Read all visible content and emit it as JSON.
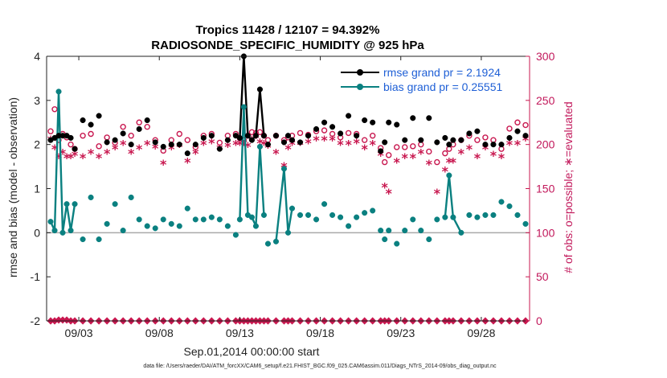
{
  "chart_data": {
    "type": "line",
    "title": "Tropics 11428 / 12107 = 94.392%",
    "subtitle": "RADIOSONDE_SPECIFIC_HUMIDITY @ 925 hPa",
    "xlabel": "Sep.01,2014 00:00:00 start",
    "ylabel_left": "rmse and bias (model - observation)",
    "ylabel_right": "# of obs: o=possible; ∗=evaluated",
    "footnote": "data file: /Users/raeder/DAI/ATM_forcXX/CAM6_setup/f.e21.FHIST_BGC.f09_025.CAM6assim.011/Diags_NTrS_2014-09/obs_diag_output.nc",
    "xlim": [
      1,
      31
    ],
    "ylim_left": [
      -2,
      4
    ],
    "ylim_right": [
      0,
      300
    ],
    "x_ticks": [
      3,
      8,
      13,
      18,
      23,
      28
    ],
    "x_tick_labels": [
      "09/03",
      "09/08",
      "09/13",
      "09/18",
      "09/23",
      "09/28"
    ],
    "y_ticks_left": [
      -2,
      -1,
      0,
      1,
      2,
      3,
      4
    ],
    "y_tick_labels_left": [
      "-2",
      "-1",
      "0",
      "1",
      "2",
      "3",
      "4"
    ],
    "y_ticks_right": [
      0,
      50,
      100,
      150,
      200,
      250,
      300
    ],
    "y_tick_labels_right": [
      "0",
      "50",
      "100",
      "150",
      "200",
      "250",
      "300"
    ],
    "legend": {
      "rmse": "rmse grand pr = 2.1924",
      "bias": "bias grand pr = 0.25551"
    },
    "colors": {
      "rmse": "#000000",
      "bias": "#0a8080",
      "obs": "#c8174f",
      "zero_line": "#aaaaaa",
      "legend_text": "#1e5fd6"
    },
    "series": [
      {
        "name": "rmse",
        "axis": "left",
        "x": [
          1.25,
          1.5,
          1.75,
          2,
          2.25,
          2.5,
          2.75,
          3.25,
          3.75,
          4.25,
          4.75,
          5.25,
          5.75,
          6.25,
          6.75,
          7.25,
          7.75,
          8.25,
          8.75,
          9.25,
          9.75,
          10.25,
          10.75,
          11.25,
          11.75,
          12.25,
          12.75,
          13,
          13.25,
          13.5,
          13.75,
          14,
          14.25,
          14.5,
          14.75,
          15.25,
          15.75,
          16,
          16.25,
          16.75,
          17.25,
          17.75,
          18.25,
          18.75,
          19.25,
          19.75,
          20.25,
          20.75,
          21.25,
          21.75,
          22,
          22.25,
          22.75,
          23.25,
          23.75,
          24.25,
          24.75,
          25.25,
          25.75,
          26,
          26.25,
          26.75,
          27.25,
          27.75,
          28.25,
          28.75,
          29.25,
          29.75,
          30.25,
          30.75
        ],
        "values": [
          2.1,
          2.15,
          2.2,
          2.2,
          2.2,
          2.15,
          1.9,
          2.55,
          2.45,
          2.65,
          2.05,
          2.1,
          2.25,
          2.0,
          2.35,
          2.55,
          2.05,
          1.95,
          2.0,
          2.0,
          1.8,
          2.0,
          2.15,
          2.2,
          1.9,
          2.1,
          2.2,
          2.15,
          4.0,
          2.2,
          2.1,
          2.2,
          3.25,
          2.2,
          2.0,
          2.2,
          2.05,
          2.2,
          2.1,
          2.05,
          2.2,
          2.35,
          2.5,
          2.4,
          2.25,
          2.65,
          2.2,
          2.55,
          2.5,
          1.85,
          2.05,
          2.5,
          2.45,
          2.1,
          2.6,
          2.1,
          2.6,
          2.05,
          2.15,
          2.0,
          2.1,
          2.1,
          2.25,
          2.3,
          2.0,
          2.0,
          2.0,
          2.15,
          2.3,
          2.2
        ],
        "polyline_segments": [
          [
            0,
            4
          ],
          [
            27,
            33
          ]
        ]
      },
      {
        "name": "bias",
        "axis": "left",
        "x": [
          1.25,
          1.5,
          1.75,
          2,
          2.25,
          2.5,
          2.75,
          3.25,
          3.75,
          4.25,
          4.75,
          5.25,
          5.75,
          6.25,
          6.75,
          7.25,
          7.75,
          8.25,
          8.75,
          9.25,
          9.75,
          10.25,
          10.75,
          11.25,
          11.75,
          12.25,
          12.75,
          13,
          13.25,
          13.5,
          13.75,
          14,
          14.25,
          14.5,
          14.75,
          15.25,
          15.75,
          16,
          16.25,
          16.75,
          17.25,
          17.75,
          18.25,
          18.75,
          19.25,
          19.75,
          20.25,
          20.75,
          21.25,
          21.75,
          22,
          22.25,
          22.75,
          23.25,
          23.75,
          24.25,
          24.75,
          25.25,
          25.75,
          26,
          26.25,
          26.75,
          27.25,
          27.75,
          28.25,
          28.75,
          29.25,
          29.75,
          30.25,
          30.75
        ],
        "values": [
          0.25,
          0.05,
          3.2,
          0.0,
          0.65,
          0.05,
          0.65,
          -0.15,
          0.8,
          -0.15,
          0.2,
          0.65,
          0.05,
          0.8,
          0.3,
          0.15,
          0.1,
          0.3,
          0.2,
          0.15,
          0.55,
          0.3,
          0.3,
          0.35,
          0.3,
          0.15,
          -0.05,
          0.3,
          2.85,
          0.4,
          0.35,
          0.15,
          1.95,
          0.4,
          -0.25,
          -0.2,
          1.45,
          0.0,
          0.55,
          0.4,
          0.4,
          0.3,
          0.65,
          0.4,
          0.35,
          0.15,
          0.35,
          0.45,
          0.5,
          0.05,
          -0.15,
          0.05,
          -0.25,
          0.05,
          0.3,
          0.05,
          -0.15,
          0.3,
          0.35,
          1.3,
          0.35,
          0.0,
          0.4,
          0.35,
          0.4,
          0.4,
          0.7,
          0.6,
          0.4,
          0.2
        ],
        "polyline_segments": [
          [
            0,
            6
          ],
          [
            27,
            33
          ],
          [
            35,
            38
          ],
          [
            58,
            61
          ]
        ]
      },
      {
        "name": "obs_possible",
        "axis": "right",
        "marker": "o",
        "x": [
          1.25,
          1.5,
          1.75,
          2,
          2.25,
          2.5,
          2.75,
          3.25,
          3.75,
          4.25,
          4.75,
          5.25,
          5.75,
          6.25,
          6.75,
          7.25,
          7.75,
          8.25,
          8.75,
          9.25,
          9.75,
          10.25,
          10.75,
          11.25,
          11.75,
          12.25,
          12.75,
          13,
          13.25,
          13.5,
          13.75,
          14,
          14.25,
          14.5,
          14.75,
          15.25,
          15.75,
          16,
          16.25,
          16.75,
          17.25,
          17.75,
          18.25,
          18.75,
          19.25,
          19.75,
          20.25,
          20.75,
          21.25,
          21.75,
          22,
          22.25,
          22.75,
          23.25,
          23.75,
          24.25,
          24.75,
          25.25,
          25.75,
          26,
          26.25,
          26.75,
          27.25,
          27.75,
          28.25,
          28.75,
          29.25,
          29.75,
          30.25,
          30.75
        ],
        "values": [
          215,
          240,
          205,
          212,
          208,
          200,
          195,
          210,
          212,
          198,
          208,
          202,
          220,
          210,
          225,
          220,
          205,
          193,
          205,
          212,
          205,
          197,
          210,
          212,
          202,
          210,
          212,
          207,
          205,
          210,
          214,
          213,
          214,
          210,
          205,
          210,
          205,
          208,
          210,
          213,
          211,
          215,
          216,
          212,
          208,
          213,
          212,
          205,
          210,
          196,
          180,
          188,
          197,
          197,
          198,
          200,
          192,
          180,
          190,
          195,
          200,
          205,
          210,
          205,
          208,
          205,
          195,
          218,
          225,
          222
        ]
      },
      {
        "name": "obs_evaluated",
        "axis": "right",
        "marker": "*",
        "x": [
          1.25,
          1.5,
          1.75,
          2,
          2.25,
          2.5,
          2.75,
          3.25,
          3.75,
          4.25,
          4.75,
          5.25,
          5.75,
          6.25,
          6.75,
          7.25,
          7.75,
          8.25,
          8.75,
          9.25,
          9.75,
          10.25,
          10.75,
          11.25,
          11.75,
          12.25,
          12.75,
          13,
          13.25,
          13.5,
          13.75,
          14,
          14.25,
          14.5,
          14.75,
          15.25,
          15.75,
          16,
          16.25,
          16.75,
          17.25,
          17.75,
          18.25,
          18.75,
          19.25,
          19.75,
          20.25,
          20.75,
          21.25,
          21.75,
          22,
          22.25,
          22.75,
          23.25,
          23.75,
          24.25,
          24.75,
          25.25,
          25.75,
          26,
          26.25,
          26.75,
          27.25,
          27.75,
          28.25,
          28.75,
          29.25,
          29.75,
          30.25,
          30.75
        ],
        "values": [
          205,
          195,
          185,
          190,
          185,
          185,
          188,
          185,
          190,
          185,
          190,
          195,
          200,
          190,
          195,
          200,
          196,
          178,
          195,
          198,
          180,
          190,
          200,
          202,
          195,
          198,
          200,
          200,
          200,
          198,
          205,
          208,
          202,
          200,
          197,
          190,
          175,
          195,
          200,
          200,
          202,
          205,
          205,
          205,
          200,
          200,
          202,
          195,
          200,
          188,
          152,
          145,
          180,
          185,
          185,
          190,
          178,
          145,
          170,
          180,
          180,
          190,
          195,
          185,
          195,
          188,
          185,
          200,
          200,
          205
        ]
      },
      {
        "name": "obs_zero_row",
        "axis": "right",
        "x": [
          1.25,
          1.5,
          1.75,
          2,
          2.25,
          2.5,
          2.75,
          3.25,
          3.75,
          4.25,
          4.75,
          5.25,
          5.75,
          6.25,
          6.75,
          7.25,
          7.75,
          8.25,
          8.75,
          9.25,
          9.75,
          10.25,
          10.75,
          11.25,
          11.75,
          12.25,
          12.75,
          13,
          13.25,
          13.5,
          13.75,
          14,
          14.25,
          14.5,
          14.75,
          15.25,
          15.75,
          16,
          16.25,
          16.75,
          17.25,
          17.75,
          18.25,
          18.75,
          19.25,
          19.75,
          20.25,
          20.75,
          21.25,
          21.75,
          22,
          22.25,
          22.75,
          23.25,
          23.75,
          24.25,
          24.75,
          25.25,
          25.75,
          26,
          26.25,
          26.75,
          27.25,
          27.75,
          28.25,
          28.75,
          29.25,
          29.75,
          30.25,
          30.75
        ],
        "values": [
          0,
          0,
          1,
          1,
          1,
          0,
          0,
          0,
          0,
          0,
          0,
          0,
          0,
          0,
          0,
          0,
          0,
          0,
          0,
          0,
          0,
          0,
          0,
          0,
          0,
          0,
          0,
          0,
          0,
          0,
          0,
          0,
          0,
          0,
          0,
          0,
          0,
          0,
          0,
          0,
          0,
          0,
          0,
          0,
          0,
          0,
          0,
          0,
          0,
          0,
          0,
          0,
          0,
          0,
          0,
          0,
          0,
          0,
          0,
          0,
          0,
          0,
          0,
          0,
          0,
          0,
          0,
          0,
          0,
          0
        ]
      }
    ]
  }
}
